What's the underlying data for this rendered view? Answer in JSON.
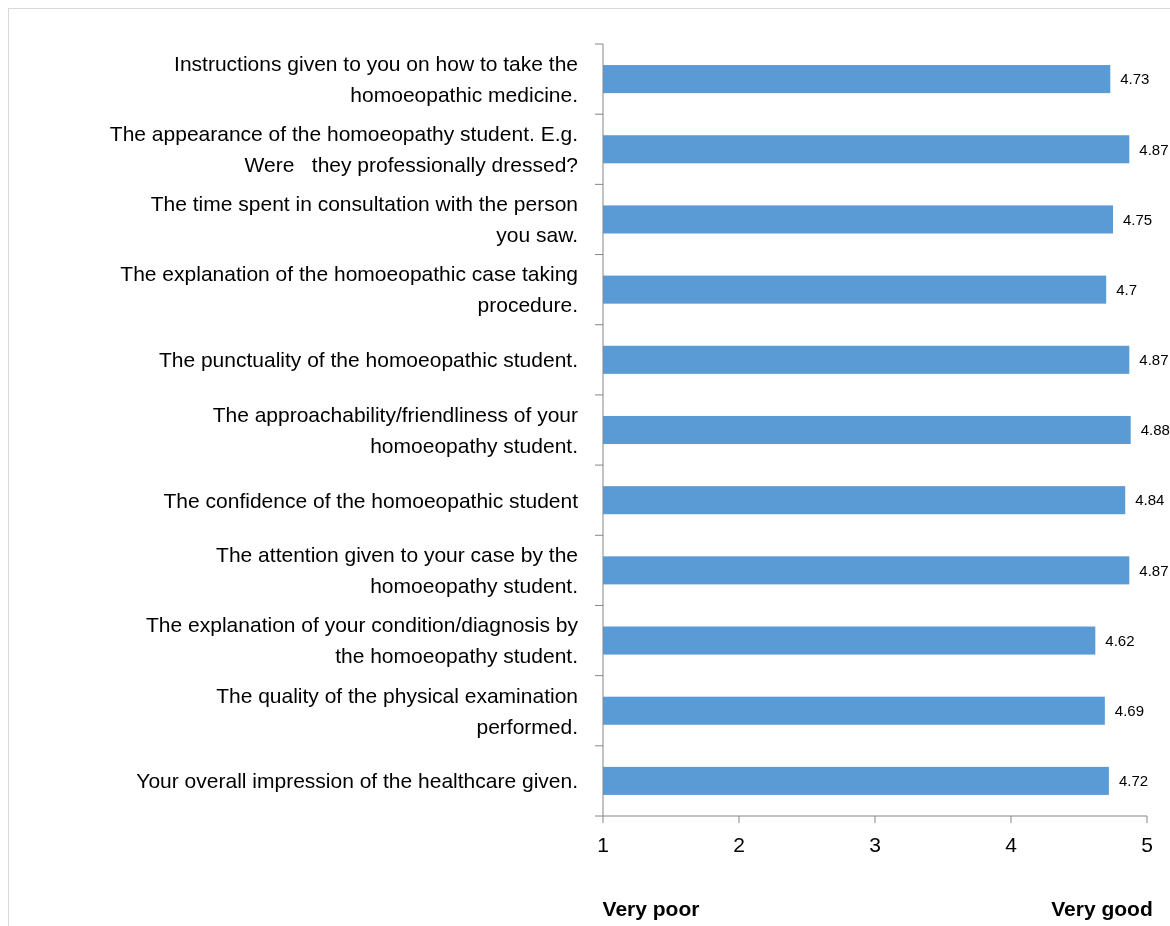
{
  "chart_data": {
    "type": "bar",
    "orientation": "horizontal",
    "categories": [
      "Instructions given to you on how to take the\nhomoeopathic medicine.",
      "The appearance of the homoeopathy student. E.g.\nWere   they professionally dressed?",
      "The time spent in consultation with the person\nyou saw.",
      "The explanation of the homoeopathic case taking\nprocedure.",
      "The punctuality of the homoeopathic student.",
      "The approachability/friendliness of your\nhomoeopathy student.",
      "The confidence of the homoeopathic student",
      "The attention given to your case by the\nhomoeopathy student.",
      "The explanation of your condition/diagnosis by\nthe homoeopathy student.",
      "The quality of the physical examination\nperformed.",
      "Your overall impression of the healthcare given."
    ],
    "values": [
      4.73,
      4.87,
      4.75,
      4.7,
      4.87,
      4.88,
      4.84,
      4.87,
      4.62,
      4.69,
      4.72
    ],
    "color": "#5b9bd5",
    "data_labels": true,
    "xlim": [
      1,
      5
    ],
    "xticks": [
      1,
      2,
      3,
      4,
      5
    ],
    "annotations": [
      "Very poor",
      "Very good"
    ],
    "grid": false
  }
}
